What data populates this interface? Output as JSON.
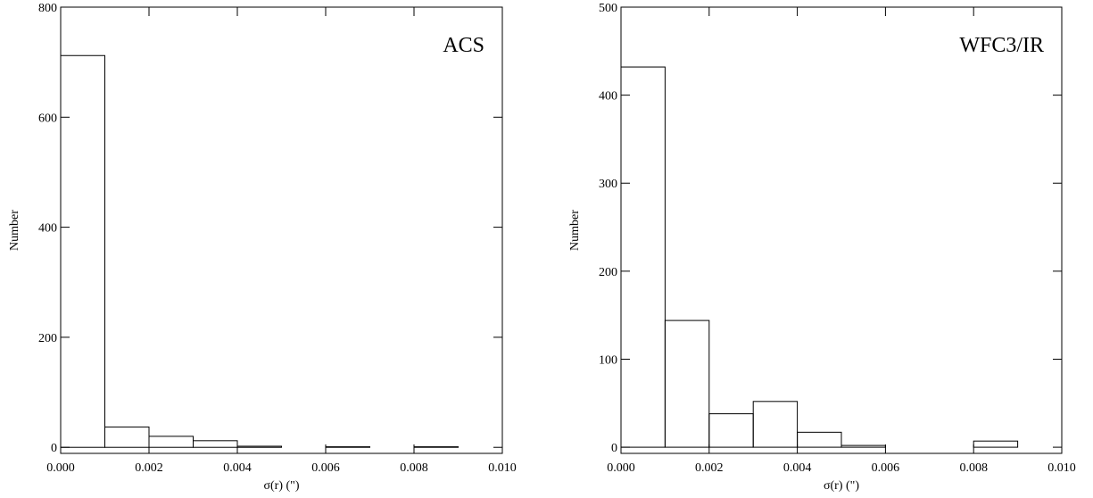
{
  "chart_data": [
    {
      "type": "histogram",
      "annotation": "ACS",
      "xlabel": "σ(r) (\")",
      "ylabel": "Number",
      "bins": [
        0,
        0.001,
        0.002,
        0.003,
        0.004,
        0.005,
        0.006,
        0.007,
        0.008,
        0.009,
        0.01
      ],
      "values": [
        712,
        37,
        20,
        12,
        2,
        0,
        1,
        0,
        1,
        0
      ],
      "color": "#000000",
      "xlim": [
        0,
        0.01
      ],
      "xticks": [
        {
          "value": 0,
          "label": "0.000"
        },
        {
          "value": 0.002,
          "label": "0.002"
        },
        {
          "value": 0.004,
          "label": "0.004"
        },
        {
          "value": 0.006,
          "label": "0.006"
        },
        {
          "value": 0.008,
          "label": "0.008"
        },
        {
          "value": 0.01,
          "label": "0.010"
        }
      ],
      "ylim": [
        -11,
        800
      ],
      "yticks": [
        0,
        200,
        400,
        600,
        800
      ]
    },
    {
      "type": "histogram",
      "annotation": "WFC3/IR",
      "xlabel": "σ(r) (\")",
      "ylabel": "Number",
      "bins": [
        0,
        0.001,
        0.002,
        0.003,
        0.004,
        0.005,
        0.006,
        0.007,
        0.008,
        0.009,
        0.01
      ],
      "values": [
        432,
        144,
        38,
        52,
        17,
        2,
        0,
        0,
        7,
        0
      ],
      "color": "#000000",
      "xlim": [
        0,
        0.01
      ],
      "xticks": [
        {
          "value": 0,
          "label": "0.000"
        },
        {
          "value": 0.002,
          "label": "0.002"
        },
        {
          "value": 0.004,
          "label": "0.004"
        },
        {
          "value": 0.006,
          "label": "0.006"
        },
        {
          "value": 0.008,
          "label": "0.008"
        },
        {
          "value": 0.01,
          "label": "0.010"
        }
      ],
      "ylim": [
        -7,
        500
      ],
      "yticks": [
        0,
        100,
        200,
        300,
        400,
        500
      ]
    }
  ]
}
